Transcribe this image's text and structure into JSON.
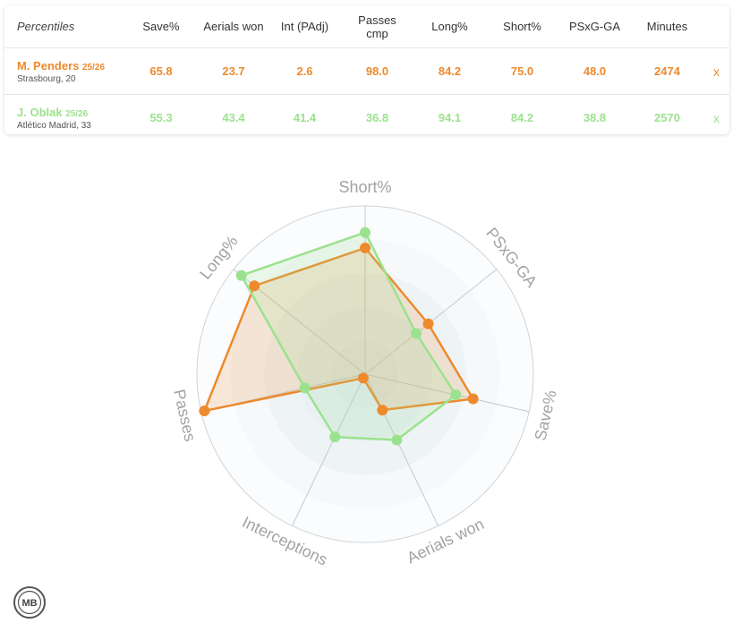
{
  "table": {
    "header_label": "Percentiles",
    "columns": [
      "Save%",
      "Aerials won",
      "Int (PAdj)",
      "Passes\ncmp",
      "Long%",
      "Short%",
      "PSxG-GA",
      "Minutes"
    ],
    "remove_label": "x",
    "players": [
      {
        "name": "M. Penders",
        "season": "25/26",
        "sub": "Strasbourg, 20",
        "color": "#ed8a2d",
        "values": [
          "65.8",
          "23.7",
          "2.6",
          "98.0",
          "84.2",
          "75.0",
          "48.0",
          "2474"
        ]
      },
      {
        "name": "J. Oblak",
        "season": "25/26",
        "sub": "Atlético Madrid, 33",
        "color": "#9be28e",
        "values": [
          "55.3",
          "43.4",
          "41.4",
          "36.8",
          "94.1",
          "84.2",
          "38.8",
          "2570"
        ]
      }
    ]
  },
  "chart_data": {
    "type": "radar",
    "axes": [
      "Short%",
      "PSxG-GA",
      "Save%",
      "Aerials won",
      "Interceptions",
      "Passes",
      "Long%"
    ],
    "range": [
      0,
      100
    ],
    "series": [
      {
        "name": "M. Penders",
        "color": "#ed8a2d",
        "values": [
          75.0,
          48.0,
          65.8,
          23.7,
          2.6,
          98.0,
          84.2
        ]
      },
      {
        "name": "J. Oblak",
        "color": "#9be28e",
        "values": [
          84.2,
          38.8,
          55.3,
          43.4,
          41.4,
          36.8,
          94.1
        ]
      }
    ]
  },
  "logo": {
    "text": "MB"
  }
}
